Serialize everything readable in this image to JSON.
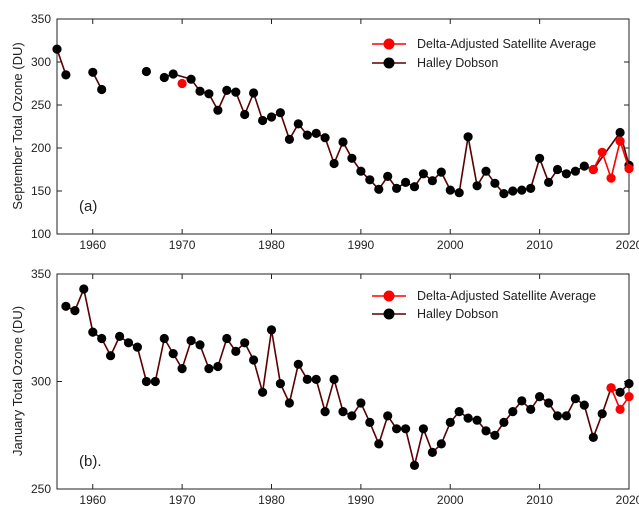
{
  "chart_data": [
    {
      "type": "line",
      "panel_label": "(a)",
      "ylabel": "September Total Ozone (DU)",
      "xlim": [
        1956,
        2020
      ],
      "ylim": [
        100,
        350
      ],
      "xticks": [
        1960,
        1970,
        1980,
        1990,
        2000,
        2010,
        2020
      ],
      "yticks": [
        100,
        150,
        200,
        250,
        300,
        350
      ],
      "legend_position": "top-right",
      "series": [
        {
          "name": "Halley Dobson",
          "color": "#000000",
          "line_color": "#5a0000",
          "points": [
            [
              1956,
              315
            ],
            [
              1957,
              285
            ],
            null,
            [
              1960,
              288
            ],
            [
              1961,
              268
            ],
            null,
            [
              1966,
              289
            ],
            null,
            [
              1968,
              282
            ],
            [
              1969,
              286
            ],
            [
              1971,
              280
            ],
            [
              1972,
              266
            ],
            [
              1973,
              263
            ],
            [
              1974,
              244
            ],
            [
              1975,
              267
            ],
            [
              1976,
              265
            ],
            [
              1977,
              239
            ],
            [
              1978,
              264
            ],
            [
              1979,
              232
            ],
            [
              1980,
              236
            ],
            [
              1981,
              241
            ],
            [
              1982,
              210
            ],
            [
              1983,
              228
            ],
            [
              1984,
              215
            ],
            [
              1985,
              217
            ],
            [
              1986,
              212
            ],
            [
              1987,
              182
            ],
            [
              1988,
              207
            ],
            [
              1989,
              188
            ],
            [
              1990,
              173
            ],
            [
              1991,
              163
            ],
            [
              1992,
              152
            ],
            [
              1993,
              167
            ],
            [
              1994,
              153
            ],
            [
              1995,
              160
            ],
            [
              1996,
              155
            ],
            [
              1997,
              170
            ],
            [
              1998,
              162
            ],
            [
              1999,
              172
            ],
            [
              2000,
              151
            ],
            [
              2001,
              148
            ],
            [
              2002,
              213
            ],
            [
              2003,
              156
            ],
            [
              2004,
              173
            ],
            [
              2005,
              159
            ],
            [
              2006,
              147
            ],
            [
              2007,
              150
            ],
            [
              2008,
              151
            ],
            [
              2009,
              153
            ],
            [
              2010,
              188
            ],
            [
              2011,
              160
            ],
            [
              2012,
              175
            ],
            [
              2013,
              170
            ],
            [
              2014,
              173
            ],
            [
              2015,
              179
            ],
            [
              2016,
              175
            ],
            [
              2019,
              218
            ],
            [
              2020,
              180
            ]
          ]
        },
        {
          "name": "Delta-Adjusted Satellite Average",
          "color": "#ff0000",
          "line_color": "#ff0000",
          "points": [
            [
              1970,
              275
            ],
            null,
            [
              2016,
              175
            ],
            [
              2017,
              195
            ],
            [
              2018,
              165
            ],
            [
              2019,
              208
            ],
            [
              2020,
              176
            ]
          ]
        }
      ]
    },
    {
      "type": "line",
      "panel_label": "(b).",
      "ylabel": "January Total Ozone (DU)",
      "xlim": [
        1956,
        2020
      ],
      "ylim": [
        250,
        350
      ],
      "xticks": [
        1960,
        1970,
        1980,
        1990,
        2000,
        2010,
        2020
      ],
      "yticks": [
        250,
        300,
        350
      ],
      "legend_position": "top-right",
      "series": [
        {
          "name": "Halley Dobson",
          "color": "#000000",
          "line_color": "#5a0000",
          "points": [
            [
              1957,
              335
            ],
            [
              1958,
              333
            ],
            [
              1959,
              343
            ],
            [
              1960,
              323
            ],
            [
              1961,
              320
            ],
            [
              1962,
              312
            ],
            [
              1963,
              321
            ],
            [
              1964,
              318
            ],
            [
              1965,
              316
            ],
            [
              1966,
              300
            ],
            [
              1967,
              300
            ],
            [
              1968,
              320
            ],
            [
              1969,
              313
            ],
            [
              1970,
              306
            ],
            [
              1971,
              319
            ],
            [
              1972,
              317
            ],
            [
              1973,
              306
            ],
            [
              1974,
              307
            ],
            [
              1975,
              320
            ],
            [
              1976,
              314
            ],
            [
              1977,
              318
            ],
            [
              1978,
              310
            ],
            [
              1979,
              295
            ],
            [
              1980,
              324
            ],
            [
              1981,
              299
            ],
            [
              1982,
              290
            ],
            [
              1983,
              308
            ],
            [
              1984,
              301
            ],
            [
              1985,
              301
            ],
            [
              1986,
              286
            ],
            [
              1987,
              301
            ],
            [
              1988,
              286
            ],
            [
              1989,
              284
            ],
            [
              1990,
              290
            ],
            [
              1991,
              281
            ],
            [
              1992,
              271
            ],
            [
              1993,
              284
            ],
            [
              1994,
              278
            ],
            [
              1995,
              278
            ],
            [
              1996,
              261
            ],
            [
              1997,
              278
            ],
            [
              1998,
              267
            ],
            [
              1999,
              271
            ],
            [
              2000,
              281
            ],
            [
              2001,
              286
            ],
            [
              2002,
              283
            ],
            [
              2003,
              282
            ],
            [
              2004,
              277
            ],
            [
              2005,
              275
            ],
            [
              2006,
              281
            ],
            [
              2007,
              286
            ],
            [
              2008,
              291
            ],
            [
              2009,
              287
            ],
            [
              2010,
              293
            ],
            [
              2011,
              290
            ],
            [
              2012,
              284
            ],
            [
              2013,
              284
            ],
            [
              2014,
              292
            ],
            [
              2015,
              289
            ],
            [
              2016,
              274
            ],
            [
              2017,
              285
            ],
            [
              2018,
              297
            ],
            [
              2019,
              295
            ],
            [
              2020,
              299
            ]
          ]
        },
        {
          "name": "Delta-Adjusted Satellite Average",
          "color": "#ff0000",
          "line_color": "#ff0000",
          "points": [
            [
              2018,
              297
            ],
            [
              2019,
              287
            ],
            [
              2020,
              293
            ]
          ]
        }
      ]
    }
  ]
}
